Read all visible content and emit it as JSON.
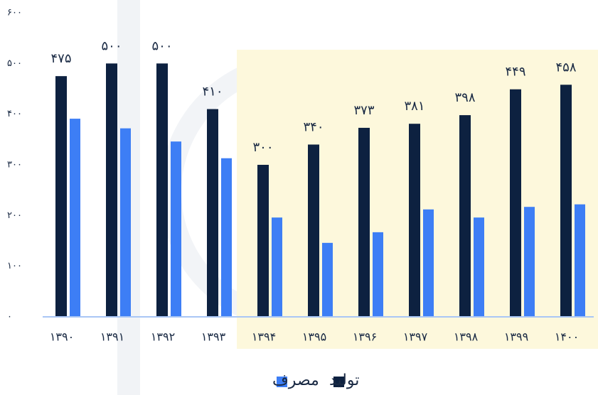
{
  "chart_data": {
    "type": "bar",
    "categories": [
      "۱۳۹۰",
      "۱۳۹۱",
      "۱۳۹۲",
      "۱۳۹۳",
      "۱۳۹۴",
      "۱۳۹۵",
      "۱۳۹۶",
      "۱۳۹۷",
      "۱۳۹۸",
      "۱۳۹۹",
      "۱۴۰۰"
    ],
    "series": [
      {
        "name": "تولید",
        "color": "#0d2140",
        "values": [
          475,
          500,
          500,
          410,
          300,
          340,
          373,
          381,
          398,
          449,
          458
        ],
        "value_labels": [
          "۴۷۵",
          "۵۰۰",
          "۵۰۰",
          "۴۱۰",
          "۳۰۰",
          "۳۴۰",
          "۳۷۳",
          "۳۸۱",
          "۳۹۸",
          "۴۴۹",
          "۴۵۸"
        ]
      },
      {
        "name": "مصرف",
        "color": "#3d7ef5",
        "values": [
          391,
          372,
          346,
          313,
          196,
          146,
          167,
          212,
          196,
          217,
          222
        ]
      }
    ],
    "ylim": [
      0,
      600
    ],
    "yticks": [
      {
        "value": 0,
        "label": "۰"
      },
      {
        "value": 100,
        "label": "۱۰۰"
      },
      {
        "value": 200,
        "label": "۲۰۰"
      },
      {
        "value": 300,
        "label": "۳۰۰"
      },
      {
        "value": 400,
        "label": "۴۰۰"
      },
      {
        "value": 500,
        "label": "۵۰۰"
      },
      {
        "value": 600,
        "label": "۶۰۰"
      }
    ],
    "grid": false
  }
}
